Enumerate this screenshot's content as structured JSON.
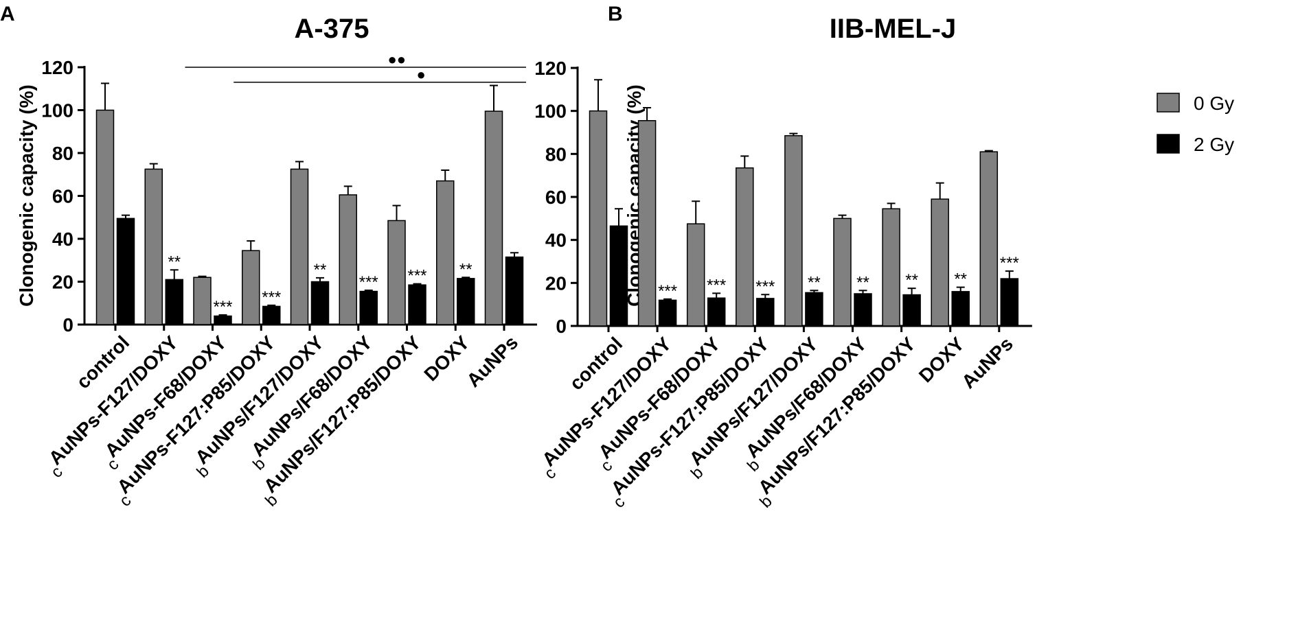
{
  "legend": {
    "items": [
      {
        "label": "0 Gy",
        "color": "#808080"
      },
      {
        "label": "2 Gy",
        "color": "#000000"
      }
    ]
  },
  "chart_data": [
    {
      "panel": "A",
      "type": "bar",
      "title": "A-375",
      "ylabel": "Clonogenic capacity (%)",
      "xlabel": "",
      "ylim": [
        0,
        120
      ],
      "yticks": [
        0,
        20,
        40,
        60,
        80,
        100,
        120
      ],
      "grid": false,
      "legend_position": "right",
      "categories": [
        {
          "prefix": "",
          "label": "control"
        },
        {
          "prefix": "c",
          "label": "AuNPs-F127/DOXY"
        },
        {
          "prefix": "c",
          "label": "AuNPs-F68/DOXY"
        },
        {
          "prefix": "c",
          "label": "AuNPs-F127:P85/DOXY"
        },
        {
          "prefix": "b",
          "label": "AuNPs/F127/DOXY"
        },
        {
          "prefix": "b",
          "label": "AuNPs/F68/DOXY"
        },
        {
          "prefix": "b",
          "label": "AuNPs/F127:P85/DOXY"
        },
        {
          "prefix": "",
          "label": "DOXY"
        },
        {
          "prefix": "",
          "label": "AuNPs"
        }
      ],
      "series": [
        {
          "name": "0 Gy",
          "values": [
            100,
            72.5,
            22,
            34.5,
            72.5,
            60.5,
            48.5,
            67,
            99.5
          ],
          "errors": [
            12.5,
            2.5,
            0.5,
            4.5,
            3.5,
            4,
            7,
            5,
            12
          ]
        },
        {
          "name": "2 Gy",
          "values": [
            49.5,
            21,
            4,
            8.5,
            20,
            15.5,
            18.5,
            21.5,
            31.5
          ],
          "errors": [
            1.5,
            4.5,
            0.5,
            0.5,
            1.8,
            0.5,
            0.5,
            0.5,
            2
          ]
        }
      ],
      "annotations": [
        "",
        "**",
        "***",
        "***",
        "**",
        "***",
        "***",
        "**",
        ""
      ],
      "comparisons": [
        {
          "symbol": "●●",
          "from_category": 2,
          "to_category": 8,
          "y": 120
        },
        {
          "symbol": "●",
          "from_category": 3,
          "to_category": 8,
          "y": 113
        }
      ]
    },
    {
      "panel": "B",
      "type": "bar",
      "title": "IIB-MEL-J",
      "ylabel": "Clonogenic capacity (%)",
      "xlabel": "",
      "ylim": [
        0,
        120
      ],
      "yticks": [
        0,
        20,
        40,
        60,
        80,
        100,
        120
      ],
      "grid": false,
      "legend_position": "right",
      "categories": [
        {
          "prefix": "",
          "label": "control"
        },
        {
          "prefix": "c",
          "label": "AuNPs-F127/DOXY"
        },
        {
          "prefix": "c",
          "label": "AuNPs-F68/DOXY"
        },
        {
          "prefix": "c",
          "label": "AuNPs-F127:P85/DOXY"
        },
        {
          "prefix": "b",
          "label": "AuNPs/F127/DOXY"
        },
        {
          "prefix": "b",
          "label": "AuNPs/F68/DOXY"
        },
        {
          "prefix": "b",
          "label": "AuNPs/F127:P85/DOXY"
        },
        {
          "prefix": "",
          "label": "DOXY"
        },
        {
          "prefix": "",
          "label": "AuNPs"
        }
      ],
      "series": [
        {
          "name": "0 Gy",
          "values": [
            100,
            95.5,
            47.5,
            73.5,
            88.5,
            50,
            54.5,
            59,
            81
          ],
          "errors": [
            14.5,
            6,
            10.5,
            5.5,
            1,
            1.5,
            2.5,
            7.5,
            0.5
          ]
        },
        {
          "name": "2 Gy",
          "values": [
            46.5,
            12,
            13,
            12.8,
            15.5,
            15,
            14.5,
            16,
            22
          ],
          "errors": [
            8,
            0.5,
            2.2,
            1.8,
            1,
            1.5,
            3,
            2,
            3.5
          ]
        }
      ],
      "annotations": [
        "",
        "***",
        "***",
        "***",
        "**",
        "**",
        "**",
        "**",
        "***"
      ],
      "comparisons": []
    }
  ]
}
